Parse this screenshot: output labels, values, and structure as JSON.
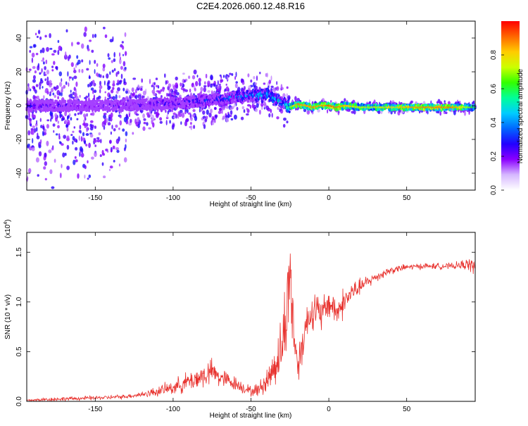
{
  "figure_title": "C2E4.2026.060.12.48.R16",
  "colorbar": {
    "label": "Normalized spectral amplitude",
    "range": [
      0.0,
      1.0
    ],
    "ticks": [
      "0.0",
      "0.2",
      "0.4",
      "0.6",
      "0.8"
    ],
    "tick_values": [
      0.0,
      0.2,
      0.4,
      0.6,
      0.8
    ],
    "colors": [
      "#ffffff",
      "#d6b8ff",
      "#8b00ff",
      "#2200ff",
      "#0066ff",
      "#00ccff",
      "#00ff99",
      "#33ff00",
      "#ccff00",
      "#ffcc00",
      "#ff6600",
      "#ff0000"
    ]
  },
  "chart_data": [
    {
      "type": "heatmap",
      "title": "C2E4.2026.060.12.48.R16",
      "xlabel": "Height of straight line (km)",
      "ylabel": "Frequency (Hz)",
      "xlim": [
        -194,
        94
      ],
      "ylim": [
        -50,
        50
      ],
      "xticks": [
        -150,
        -100,
        -50,
        0,
        50
      ],
      "xtick_labels": [
        "-150",
        "-100",
        "-50",
        "0",
        "50"
      ],
      "yticks": [
        -40,
        -20,
        0,
        20,
        40
      ],
      "ytick_labels": [
        "-40",
        "-20",
        "0",
        "20",
        "40"
      ],
      "ridge": {
        "description": "high-amplitude Doppler ridge vs height",
        "x": [
          -194,
          -170,
          -150,
          -130,
          -110,
          -90,
          -70,
          -60,
          -50,
          -40,
          -35,
          -30,
          -25,
          -20,
          -15,
          -10,
          -5,
          0,
          5,
          10,
          20,
          40,
          60,
          80,
          94
        ],
        "f": [
          0,
          0,
          0,
          0,
          1,
          2,
          4,
          5,
          6,
          7,
          4,
          2,
          -1,
          1,
          0,
          -1,
          0,
          0,
          -1,
          0,
          -1,
          -1,
          -1,
          -1,
          -1
        ],
        "amplitude": [
          0.3,
          0.3,
          0.28,
          0.3,
          0.32,
          0.35,
          0.4,
          0.45,
          0.5,
          0.55,
          0.6,
          0.55,
          0.7,
          0.9,
          0.85,
          0.9,
          0.85,
          0.95,
          0.9,
          0.85,
          0.75,
          0.8,
          0.9,
          0.9,
          0.6
        ]
      }
    },
    {
      "type": "line",
      "xlabel": "Height of straight line (km)",
      "ylabel": "SNR (10 * v/v)",
      "yscale_label": "(x10",
      "yscale_exponent": "4",
      "xlim": [
        -194,
        94
      ],
      "ylim": [
        0,
        1.7
      ],
      "xticks": [
        -150,
        -100,
        -50,
        0,
        50
      ],
      "xtick_labels": [
        "-150",
        "-100",
        "-50",
        "0",
        "50"
      ],
      "yticks": [
        0.0,
        0.5,
        1.0,
        1.5
      ],
      "ytick_labels": [
        "0.0",
        "0.5",
        "1.0",
        "1.5"
      ],
      "series": [
        {
          "name": "SNR",
          "color": "#e8332f",
          "x": [
            -194,
            -180,
            -160,
            -140,
            -130,
            -120,
            -110,
            -100,
            -90,
            -80,
            -75,
            -70,
            -60,
            -50,
            -45,
            -40,
            -35,
            -30,
            -27,
            -25,
            -23,
            -20,
            -15,
            -10,
            -5,
            0,
            5,
            10,
            15,
            20,
            30,
            40,
            50,
            60,
            70,
            80,
            90,
            94
          ],
          "y": [
            0.01,
            0.02,
            0.03,
            0.04,
            0.05,
            0.07,
            0.1,
            0.14,
            0.2,
            0.26,
            0.3,
            0.24,
            0.18,
            0.1,
            0.12,
            0.2,
            0.35,
            0.55,
            0.9,
            1.35,
            0.8,
            0.35,
            0.75,
            0.95,
            0.85,
            1.0,
            0.9,
            1.0,
            1.1,
            1.15,
            1.25,
            1.32,
            1.35,
            1.36,
            1.36,
            1.36,
            1.38,
            1.35
          ],
          "noise": [
            0.01,
            0.02,
            0.02,
            0.02,
            0.02,
            0.03,
            0.05,
            0.07,
            0.1,
            0.13,
            0.12,
            0.1,
            0.07,
            0.05,
            0.07,
            0.12,
            0.2,
            0.3,
            0.5,
            0.4,
            0.4,
            0.2,
            0.2,
            0.2,
            0.18,
            0.15,
            0.15,
            0.15,
            0.1,
            0.08,
            0.05,
            0.04,
            0.03,
            0.03,
            0.03,
            0.03,
            0.06,
            0.1
          ]
        }
      ]
    }
  ]
}
